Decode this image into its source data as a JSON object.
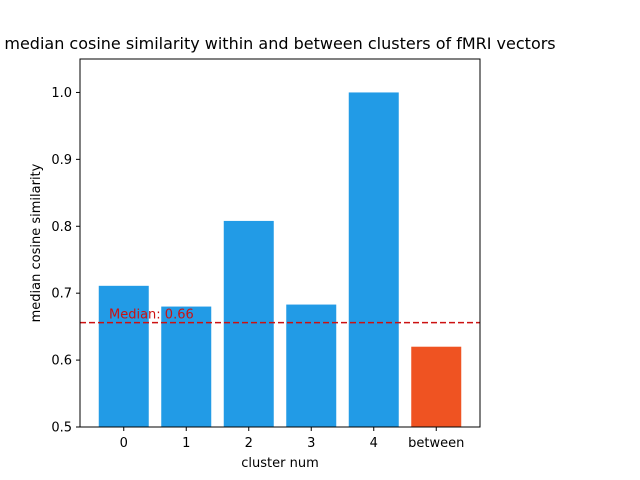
{
  "chart_data": {
    "type": "bar",
    "title": "median cosine similarity within and between clusters of fMRI vectors",
    "xlabel": "cluster num",
    "ylabel": "median cosine similarity",
    "categories": [
      "0",
      "1",
      "2",
      "3",
      "4",
      "between"
    ],
    "values": [
      0.711,
      0.68,
      0.808,
      0.683,
      1.0,
      0.62
    ],
    "bar_colors": [
      "#229bE6",
      "#229bE6",
      "#229bE6",
      "#229bE6",
      "#229bE6",
      "#ef5322"
    ],
    "ylim": [
      0.5,
      1.05
    ],
    "yticks": [
      0.5,
      0.6,
      0.7,
      0.8,
      0.9,
      1.0
    ],
    "ytick_labels": [
      "0.5",
      "0.6",
      "0.7",
      "0.8",
      "0.9",
      "1.0"
    ],
    "reference_line": {
      "value": 0.656,
      "label": "Median: 0.66",
      "color": "#cc1111",
      "style": "dashed"
    },
    "grid": false,
    "legend": "none"
  }
}
